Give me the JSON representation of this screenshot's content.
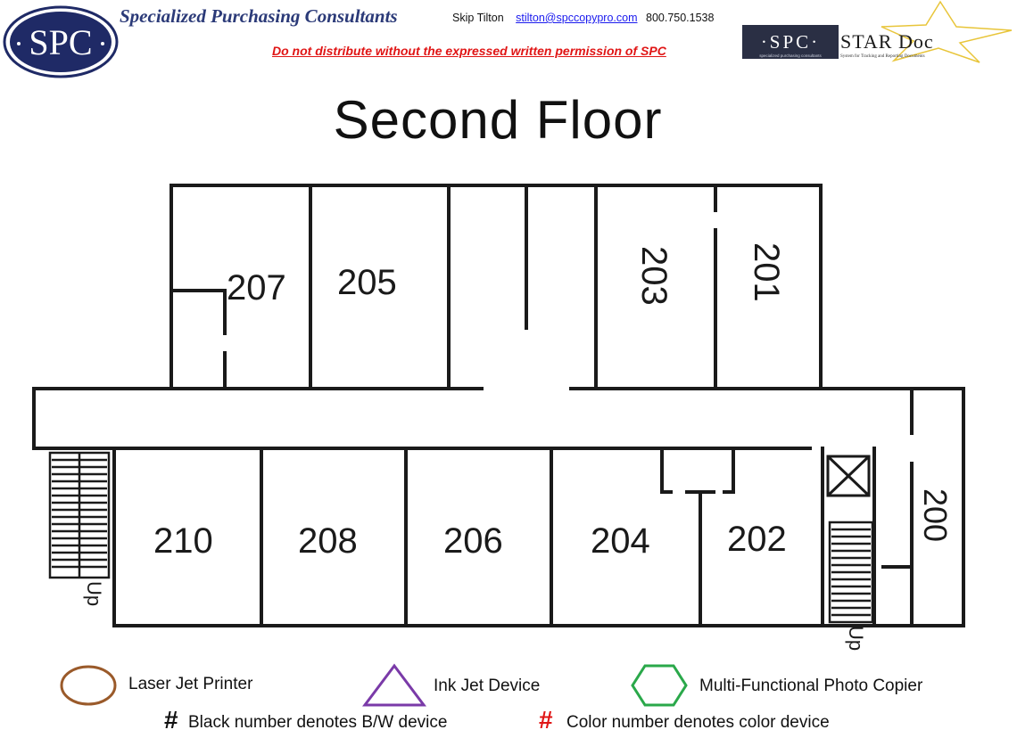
{
  "header": {
    "logo_text": "SPC",
    "company": "Specialized Purchasing Consultants",
    "contact_name": "Skip Tilton",
    "contact_email": "stilton@spccopypro.com",
    "contact_phone": "800.750.1538",
    "disclaimer": "Do not distribute without the expressed written permission of SPC",
    "star_logo_text": "STAR Doc",
    "star_logo_mark": "·SPC·",
    "star_logo_tagline_left": "specialized purchasing consultants",
    "star_logo_tagline_right": "System for Tracking and Reporting Documents"
  },
  "floor_title": "Second Floor",
  "rooms": {
    "r207": "207",
    "r205": "205",
    "r203": "203",
    "r201": "201",
    "r210": "210",
    "r208": "208",
    "r206": "206",
    "r204": "204",
    "r202": "202",
    "r200": "200",
    "stair_left_label": "Up",
    "stair_right_label": "Up"
  },
  "legend": {
    "laser": "Laser Jet Printer",
    "inkjet": "Ink Jet Device",
    "mfp": "Multi-Functional Photo Copier",
    "bw_symbol": "#",
    "bw_text": "Black number denotes B/W device",
    "color_symbol": "#",
    "color_text": "Color number denotes color device",
    "colors": {
      "laser": "#9a5a2a",
      "inkjet": "#7a3aa8",
      "mfp": "#2aa84a",
      "color_symbol": "#e01515",
      "company": "#2b3a78",
      "disclaimer": "#e01515"
    }
  }
}
